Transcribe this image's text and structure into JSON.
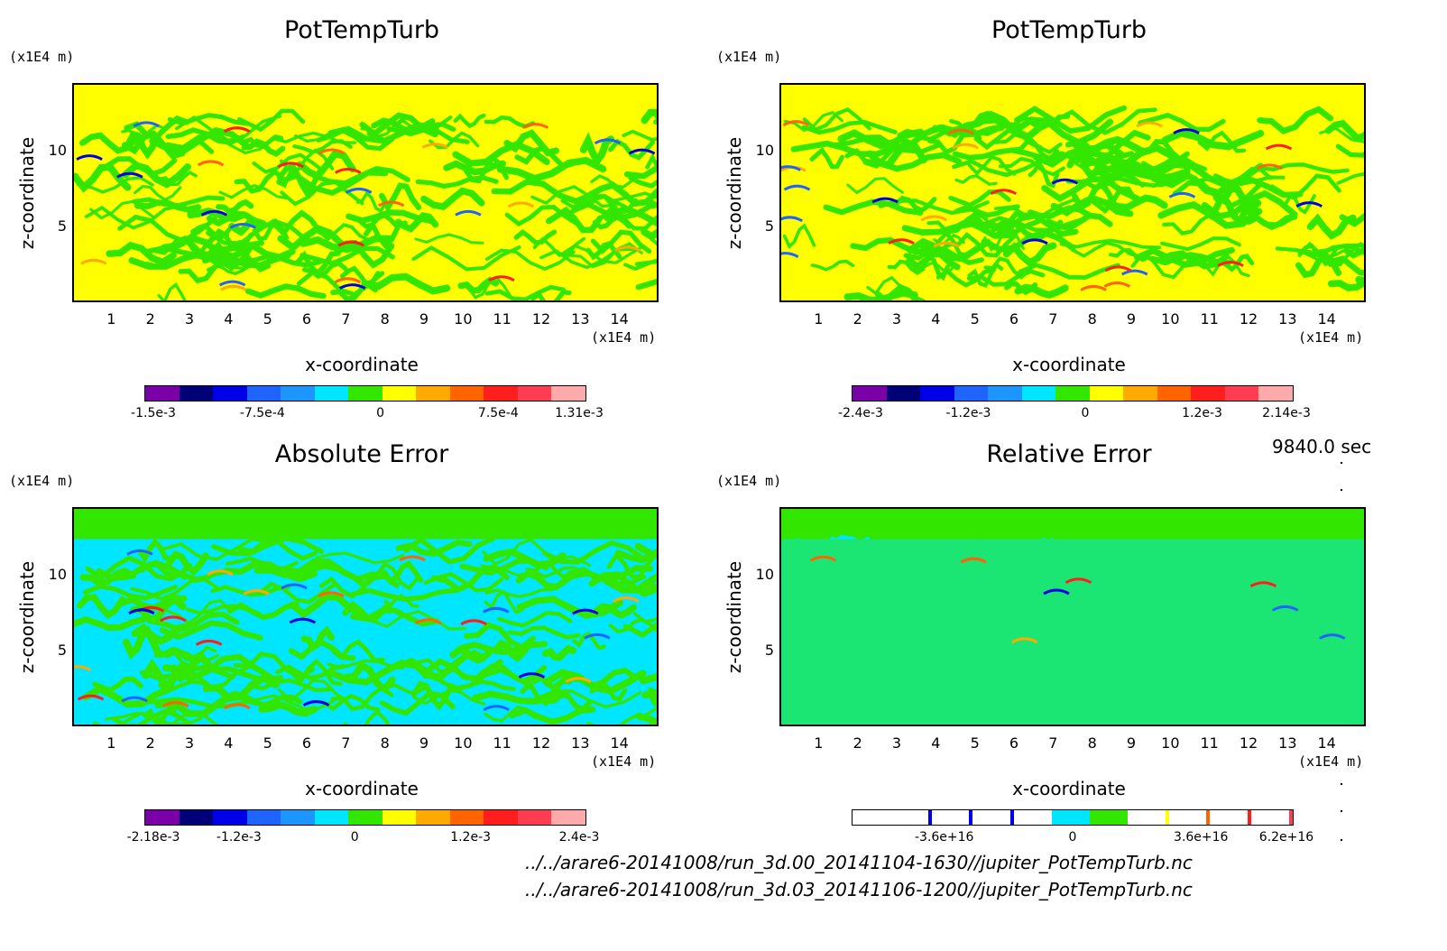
{
  "colors": {
    "palette": [
      "#7a00a8",
      "#000078",
      "#0000e8",
      "#1f64ff",
      "#1e96ff",
      "#00e6ff",
      "#32e600",
      "#ffff00",
      "#ffaa00",
      "#ff6400",
      "#ff1e1e",
      "#ff3c50",
      "#ffaaaa"
    ],
    "white": "#ffffff"
  },
  "footer": {
    "time": "9840.0 sec",
    "file1": "../../arare6-20141008/run_3d.00_20141104-1630//jupiter_PotTempTurb.nc",
    "file2": "../../arare6-20141008/run_3d.03_20141106-1200//jupiter_PotTempTurb.nc"
  },
  "chart_data": [
    {
      "type": "heatmap",
      "title": "PotTempTurb",
      "xlabel": "x-coordinate",
      "ylabel": "z-coordinate",
      "x_unit": "(x1E4 m)",
      "y_unit": "(x1E4 m)",
      "xlim": [
        0,
        15
      ],
      "ylim": [
        0,
        14.5
      ],
      "x_ticks": [
        "1",
        "2",
        "3",
        "4",
        "5",
        "6",
        "7",
        "8",
        "9",
        "10",
        "11",
        "12",
        "13",
        "14"
      ],
      "y_ticks": [
        "5",
        "10"
      ],
      "colorbar_ticks": [
        "-1.5e-3",
        "-7.5e-4",
        "0",
        "7.5e-4",
        "1.31e-3"
      ],
      "colorbar_range": [
        -0.0015,
        0.00131
      ]
    },
    {
      "type": "heatmap",
      "title": "PotTempTurb",
      "xlabel": "x-coordinate",
      "ylabel": "z-coordinate",
      "x_unit": "(x1E4 m)",
      "y_unit": "(x1E4 m)",
      "xlim": [
        0,
        15
      ],
      "ylim": [
        0,
        14.5
      ],
      "x_ticks": [
        "1",
        "2",
        "3",
        "4",
        "5",
        "6",
        "7",
        "8",
        "9",
        "10",
        "11",
        "12",
        "13",
        "14"
      ],
      "y_ticks": [
        "5",
        "10"
      ],
      "colorbar_ticks": [
        "-2.4e-3",
        "-1.2e-3",
        "0",
        "1.2e-3",
        "2.14e-3"
      ],
      "colorbar_range": [
        -0.0024,
        0.00214
      ]
    },
    {
      "type": "heatmap",
      "title": "Absolute Error",
      "xlabel": "x-coordinate",
      "ylabel": "z-coordinate",
      "x_unit": "(x1E4 m)",
      "y_unit": "(x1E4 m)",
      "xlim": [
        0,
        15
      ],
      "ylim": [
        0,
        14.5
      ],
      "x_ticks": [
        "1",
        "2",
        "3",
        "4",
        "5",
        "6",
        "7",
        "8",
        "9",
        "10",
        "11",
        "12",
        "13",
        "14"
      ],
      "y_ticks": [
        "5",
        "10"
      ],
      "colorbar_ticks": [
        "-2.18e-3",
        "-1.2e-3",
        "0",
        "1.2e-3",
        "2.4e-3"
      ],
      "colorbar_range": [
        -0.00218,
        0.0024
      ]
    },
    {
      "type": "heatmap",
      "title": "Relative Error",
      "xlabel": "x-coordinate",
      "ylabel": "z-coordinate",
      "x_unit": "(x1E4 m)",
      "y_unit": "(x1E4 m)",
      "xlim": [
        0,
        15
      ],
      "ylim": [
        0,
        14.5
      ],
      "x_ticks": [
        "1",
        "2",
        "3",
        "4",
        "5",
        "6",
        "7",
        "8",
        "9",
        "10",
        "11",
        "12",
        "13",
        "14"
      ],
      "y_ticks": [
        "5",
        "10"
      ],
      "colorbar_ticks": [
        "-3.6e+16",
        "0",
        "3.6e+16",
        "6.2e+16"
      ],
      "colorbar_range": [
        -6.2e+16,
        6.2e+16
      ]
    }
  ]
}
